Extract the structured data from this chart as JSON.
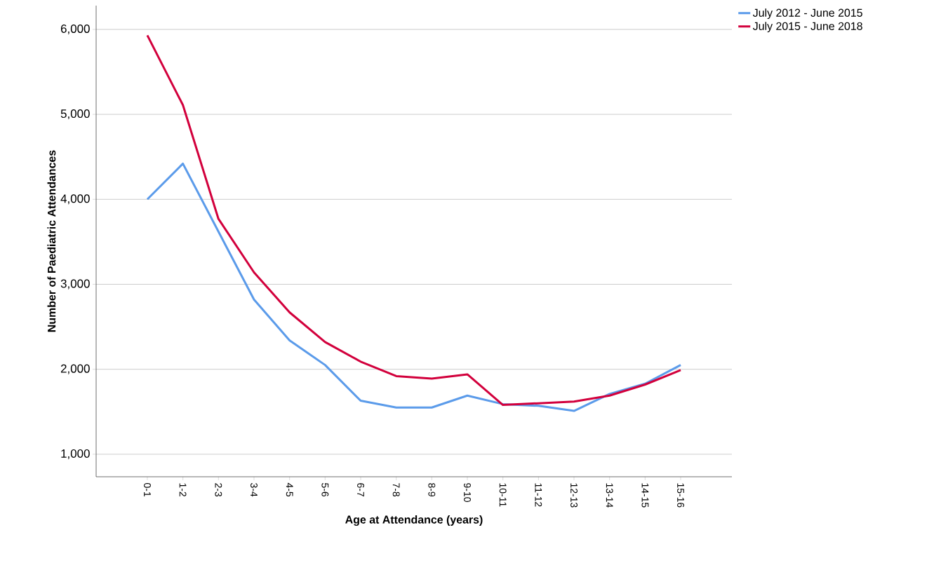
{
  "chart_data": {
    "type": "line",
    "xlabel": "Age at Attendance (years)",
    "ylabel": "Number of Paediatric Attendances",
    "categories": [
      "0-1",
      "1-2",
      "2-3",
      "3-4",
      "4-5",
      "5-6",
      "6-7",
      "7-8",
      "8-9",
      "9-10",
      "10-11",
      "11-12",
      "12-13",
      "13-14",
      "14-15",
      "15-16"
    ],
    "series": [
      {
        "name": "July 2012 - June 2015",
        "color": "#5b9bea",
        "values": [
          4000,
          4420,
          3620,
          2820,
          2340,
          2050,
          1630,
          1550,
          1550,
          1690,
          1590,
          1570,
          1510,
          1710,
          1830,
          2050
        ]
      },
      {
        "name": "July 2015 - June 2018",
        "color": "#d2003c",
        "values": [
          5930,
          5110,
          3770,
          3140,
          2670,
          2320,
          2090,
          1920,
          1890,
          1940,
          1580,
          1600,
          1620,
          1690,
          1820,
          1990
        ]
      }
    ],
    "ylim": [
      735,
      6280
    ],
    "yticks": [
      {
        "value": 1000,
        "label": "1,000"
      },
      {
        "value": 2000,
        "label": "2,000"
      },
      {
        "value": 3000,
        "label": "3,000"
      },
      {
        "value": 4000,
        "label": "4,000"
      },
      {
        "value": 5000,
        "label": "5,000"
      },
      {
        "value": 6000,
        "label": "6,000"
      }
    ],
    "grid": "y",
    "legend": "top right",
    "marker": "none",
    "line_style": "solid"
  }
}
